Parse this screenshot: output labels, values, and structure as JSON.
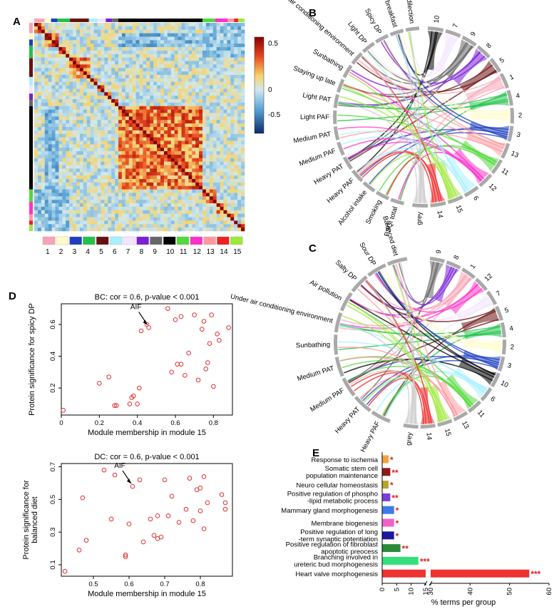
{
  "figure": {
    "panels": [
      {
        "id": "A",
        "label": "A"
      },
      {
        "id": "B",
        "label": "B"
      },
      {
        "id": "C",
        "label": "C"
      },
      {
        "id": "D",
        "label": "D"
      },
      {
        "id": "E",
        "label": "E"
      }
    ],
    "module_colors": [
      "#f9a3b5",
      "#fffbc8",
      "#1f3fbf",
      "#22c24a",
      "#6a0f0f",
      "#a8f0ff",
      "#f3e4ff",
      "#7a1fd6",
      "#666666",
      "#000000",
      "#52d93a",
      "#ff31c8",
      "#ff9aa0",
      "#ee2222",
      "#9ee83a"
    ],
    "heatmap": {
      "colorbar_ticks": [
        "0.5",
        "0",
        "-0.5"
      ],
      "module_numbers": [
        "1",
        "2",
        "3",
        "4",
        "5",
        "6",
        "7",
        "8",
        "9",
        "10",
        "11",
        "12",
        "13",
        "14",
        "15"
      ]
    },
    "chord_b": {
      "left_labels": [
        "PSQI total",
        "Smoking",
        "Alcohol intake",
        "Heavy PAF",
        "Heavy PAT",
        "Medium PAF",
        "Medium PAT",
        "Light PAF",
        "Light PAT",
        "Staying up late",
        "Sunbathing",
        "Under air conditioning environment",
        "Light DP",
        "Spicy DP",
        "Not taking breakfast",
        "Diet predilection"
      ],
      "right_labels": [
        "10",
        "7",
        "9",
        "8",
        "5",
        "1",
        "4",
        "2",
        "3",
        "13",
        "11",
        "12",
        "6",
        "15",
        "14",
        "grey"
      ]
    },
    "chord_c": {
      "left_labels": [
        "Heavy PAF",
        "Heavy PAT",
        "Medium PAF",
        "Medium PAT",
        "Sunbathing",
        "Under air conditioning environment",
        "Air pollution",
        "Salty DP",
        "Sour DP",
        "Balanced diet"
      ],
      "right_labels": [
        "9",
        "8",
        "1",
        "12",
        "7",
        "5",
        "4",
        "2",
        "3",
        "10",
        "6",
        "11",
        "13",
        "15",
        "14",
        "grey"
      ]
    },
    "scatter_bc": {
      "chart_data": {
        "type": "scatter",
        "title": "BC: cor = 0.6, p-value < 0.001",
        "xlabel": "Module membership in module 15",
        "ylabel": "Protein significance for spicy DP",
        "xlim": [
          0,
          0.9
        ],
        "ylim": [
          0.03,
          0.73
        ],
        "xticks": [
          "0",
          "0.2",
          "0.4",
          "0.6",
          "0.8"
        ],
        "yticks": [
          "0.2",
          "0.4",
          "0.6"
        ],
        "annotation": "AIF",
        "annotation_point": [
          0.46,
          0.58
        ],
        "x": [
          0.01,
          0.2,
          0.25,
          0.28,
          0.29,
          0.36,
          0.37,
          0.38,
          0.4,
          0.41,
          0.42,
          0.45,
          0.46,
          0.56,
          0.58,
          0.6,
          0.61,
          0.63,
          0.63,
          0.65,
          0.67,
          0.7,
          0.72,
          0.74,
          0.75,
          0.76,
          0.77,
          0.78,
          0.79,
          0.8,
          0.82,
          0.83,
          0.88
        ],
        "y": [
          0.06,
          0.23,
          0.27,
          0.09,
          0.09,
          0.1,
          0.14,
          0.15,
          0.1,
          0.2,
          0.56,
          0.6,
          0.58,
          0.7,
          0.3,
          0.63,
          0.35,
          0.35,
          0.65,
          0.28,
          0.42,
          0.66,
          0.25,
          0.57,
          0.62,
          0.32,
          0.36,
          0.48,
          0.66,
          0.21,
          0.54,
          0.5,
          0.58
        ]
      }
    },
    "scatter_dc": {
      "chart_data": {
        "type": "scatter",
        "title": "DC: cor = 0.6, p-value < 0.001",
        "xlabel": "Module membership in module 15",
        "ylabel": "Protein significance for balanced diet",
        "xlim": [
          0.41,
          0.89
        ],
        "ylim": [
          0.03,
          0.72
        ],
        "xticks": [
          "0.5",
          "0.6",
          "0.7",
          "0.8"
        ],
        "yticks": [
          "0.1",
          "0.3",
          "0.5",
          "0.7"
        ],
        "annotation": "AIF",
        "annotation_point": [
          0.61,
          0.58
        ],
        "x": [
          0.42,
          0.46,
          0.47,
          0.48,
          0.53,
          0.55,
          0.56,
          0.59,
          0.59,
          0.6,
          0.61,
          0.63,
          0.64,
          0.66,
          0.67,
          0.68,
          0.68,
          0.69,
          0.7,
          0.71,
          0.72,
          0.74,
          0.76,
          0.77,
          0.78,
          0.79,
          0.8,
          0.8,
          0.81,
          0.81,
          0.82,
          0.86,
          0.87,
          0.87
        ],
        "y": [
          0.06,
          0.19,
          0.51,
          0.25,
          0.68,
          0.38,
          0.65,
          0.15,
          0.16,
          0.35,
          0.58,
          0.62,
          0.24,
          0.38,
          0.28,
          0.26,
          0.4,
          0.27,
          0.62,
          0.4,
          0.52,
          0.36,
          0.44,
          0.63,
          0.37,
          0.56,
          0.57,
          0.43,
          0.32,
          0.64,
          0.48,
          0.53,
          0.48,
          0.44
        ]
      }
    },
    "bar_e": {
      "chart_data": {
        "type": "bar",
        "orientation": "horizontal",
        "xlabel": "% terms per group",
        "axis_break": [
          15,
          30
        ],
        "xticks": [
          "0",
          "5",
          "10",
          "15",
          "30",
          "40",
          "50",
          "60"
        ],
        "categories": [
          "Response to ischemia",
          "Somatic stem cell population maintenance",
          "Neuro cellular homeostasis",
          "Positive regulation of phospho-lipid metabolic process",
          "Mammary gland morphogenesis",
          "Membrane biogenesis",
          "Positive regulation of long-term synaptic potentiation",
          "Positive regulation of fibroblast apoptotic preocess",
          "Branching involved in ureteric bud morphogenesis",
          "Heart valve morphogenesis"
        ],
        "label_lines": [
          [
            "Response to ischemia"
          ],
          [
            "Somatic stem cell",
            "population maintenance"
          ],
          [
            "Neuro cellular homeostasis"
          ],
          [
            "Positive regulation of phospho",
            "-lipid metabolic process"
          ],
          [
            "Mammary gland morphogenesis"
          ],
          [
            "Membrane biogenesis"
          ],
          [
            "Positive regulation of long",
            "-term synaptic potentiation"
          ],
          [
            "Positive regulation of fibroblast",
            "apoptotic preocess"
          ],
          [
            "Branching involved in",
            "ureteric bud morphogenesis"
          ],
          [
            "Heart valve morphogenesis"
          ]
        ],
        "values": [
          2.2,
          2.8,
          2.2,
          2.8,
          4.1,
          4.1,
          4.1,
          6.3,
          12.5,
          55
        ],
        "significance": [
          "*",
          "**",
          "*",
          "**",
          "*",
          "*",
          "*",
          "**",
          "***",
          "***"
        ],
        "colors": [
          "#f4a13c",
          "#8b1a1a",
          "#b8a42a",
          "#7b3fd6",
          "#3c7be8",
          "#f062c8",
          "#1a1a9a",
          "#2a8a3a",
          "#33e07a",
          "#ee3333"
        ]
      }
    }
  }
}
